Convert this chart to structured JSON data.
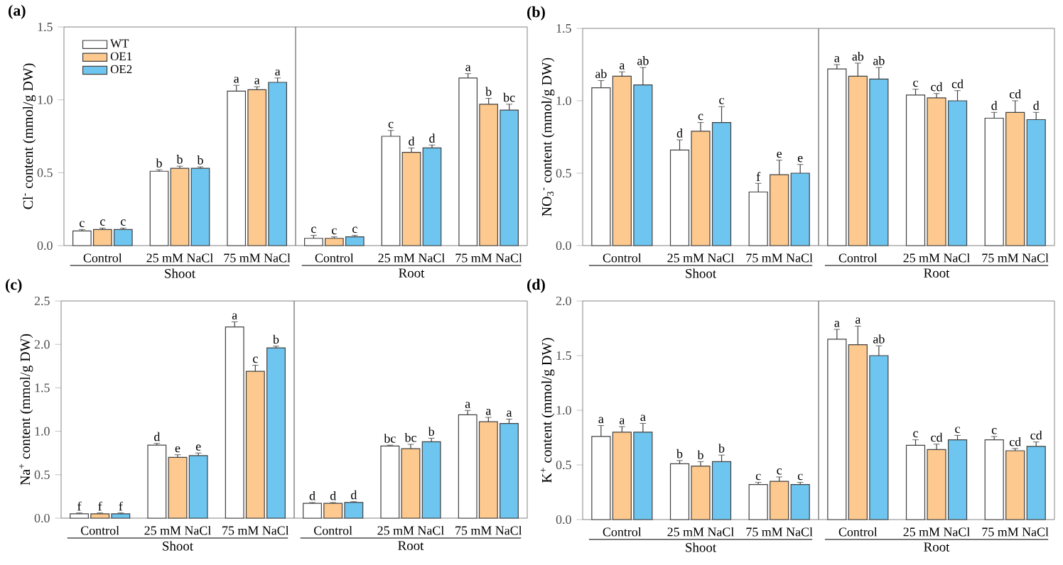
{
  "chart_data": [
    {
      "type": "bar",
      "title": "(a)",
      "ylabel": "Cl$^{-}$ content (mmol/g DW)",
      "categories": [
        "Control",
        "25 mM NaCl",
        "75 mM NaCl",
        "Control",
        "25 mM NaCl",
        "75 mM NaCl"
      ],
      "legend": "top left",
      "series": [
        {
          "name": "WT",
          "color": "#ffffff",
          "values": [
            0.1,
            0.51,
            1.06,
            0.05,
            0.75,
            1.15
          ],
          "errors": [
            0.01,
            0.01,
            0.04,
            0.02,
            0.04,
            0.03
          ],
          "value_labels": [
            "c",
            "b",
            "a",
            "c",
            "c",
            "a"
          ]
        },
        {
          "name": "OE1",
          "color": "#fdc98f",
          "values": [
            0.11,
            0.53,
            1.07,
            0.05,
            0.64,
            0.97
          ],
          "errors": [
            0.01,
            0.015,
            0.02,
            0.01,
            0.03,
            0.04
          ],
          "value_labels": [
            "c",
            "b",
            "a",
            "c",
            "d",
            "b"
          ]
        },
        {
          "name": "OE2",
          "color": "#6ec6f0",
          "values": [
            0.11,
            0.53,
            1.12,
            0.06,
            0.67,
            0.93
          ],
          "errors": [
            0.01,
            0.01,
            0.03,
            0.01,
            0.02,
            0.04
          ],
          "value_labels": [
            "c",
            "b",
            "a",
            "c",
            "d",
            "bc"
          ]
        }
      ],
      "ylim": [
        0,
        1.5
      ],
      "yticks": [
        {
          "value": 0,
          "label": "0.0"
        },
        0.5,
        {
          "value": 1,
          "label": "1.0"
        },
        1.5
      ],
      "annotations": [
        "Shoot",
        "Root"
      ]
    },
    {
      "type": "bar",
      "title": "(b)",
      "ylabel": "NO$_{3}$$^{-}$ content (mmol/g DW)",
      "categories": [
        "Control",
        "25 mM NaCl",
        "75 mM NaCl",
        "Control",
        "25 mM NaCl",
        "75 mM NaCl"
      ],
      "series": [
        {
          "color": "#ffffff",
          "values": [
            1.09,
            0.66,
            0.37,
            1.22,
            1.04,
            0.88
          ],
          "errors": [
            0.05,
            0.07,
            0.06,
            0.03,
            0.04,
            0.04
          ],
          "value_labels": [
            "ab",
            "d",
            "f",
            "a",
            "c",
            "d"
          ]
        },
        {
          "color": "#fdc98f",
          "values": [
            1.17,
            0.79,
            0.49,
            1.17,
            1.02,
            0.92
          ],
          "errors": [
            0.03,
            0.06,
            0.1,
            0.09,
            0.03,
            0.08
          ],
          "value_labels": [
            "a",
            "c",
            "e",
            "ab",
            "cd",
            "cd"
          ]
        },
        {
          "color": "#6ec6f0",
          "values": [
            1.11,
            0.85,
            0.5,
            1.15,
            1.0,
            0.87
          ],
          "errors": [
            0.12,
            0.11,
            0.06,
            0.08,
            0.07,
            0.05
          ],
          "value_labels": [
            "ab",
            "c",
            "e",
            "ab",
            "cd",
            "d"
          ]
        }
      ],
      "ylim": [
        0,
        1.5
      ],
      "yticks": [
        {
          "value": 0,
          "label": "0.0"
        },
        0.5,
        {
          "value": 1,
          "label": "1.0"
        },
        1.5
      ],
      "annotations": [
        "Shoot",
        "Root"
      ]
    },
    {
      "type": "bar",
      "title": "(c)",
      "ylabel": "Na$^{+}$ content (mmol/g DW)",
      "categories": [
        "Control",
        "25 mM NaCl",
        "75 mM NaCl",
        "Control",
        "25 mM NaCl",
        "75 mM NaCl"
      ],
      "series": [
        {
          "color": "#ffffff",
          "values": [
            0.05,
            0.84,
            2.2,
            0.17,
            0.83,
            1.19
          ],
          "errors": [
            0.01,
            0.02,
            0.06,
            0.01,
            0.01,
            0.05
          ],
          "value_labels": [
            "f",
            "d",
            "a",
            "d",
            "bc",
            "a"
          ]
        },
        {
          "color": "#fdc98f",
          "values": [
            0.05,
            0.7,
            1.69,
            0.17,
            0.8,
            1.11
          ],
          "errors": [
            0.01,
            0.03,
            0.07,
            0.01,
            0.05,
            0.05
          ],
          "value_labels": [
            "f",
            "e",
            "c",
            "d",
            "bc",
            "a"
          ]
        },
        {
          "color": "#6ec6f0",
          "values": [
            0.05,
            0.72,
            1.96,
            0.18,
            0.88,
            1.09
          ],
          "errors": [
            0.01,
            0.03,
            0.02,
            0.01,
            0.04,
            0.05
          ],
          "value_labels": [
            "f",
            "e",
            "b",
            "d",
            "b",
            "a"
          ]
        }
      ],
      "ylim": [
        0,
        2.5
      ],
      "yticks": [
        {
          "value": 0,
          "label": "0.0"
        },
        0.5,
        {
          "value": 1,
          "label": "1.0"
        },
        1.5,
        {
          "value": 2,
          "label": "2.0"
        },
        2.5
      ],
      "annotations": [
        "Shoot",
        "Root"
      ]
    },
    {
      "type": "bar",
      "title": "(d)",
      "ylabel": "K$^{+}$ content (mmol/g DW)",
      "categories": [
        "Control",
        "25 mM NaCl",
        "75 mM NaCl",
        "Control",
        "25 mM NaCl",
        "75 mM NaCl"
      ],
      "series": [
        {
          "color": "#ffffff",
          "values": [
            0.76,
            0.51,
            0.32,
            1.65,
            0.68,
            0.73
          ],
          "errors": [
            0.1,
            0.03,
            0.02,
            0.09,
            0.05,
            0.03
          ],
          "value_labels": [
            "a",
            "b",
            "c",
            "a",
            "c",
            "c"
          ]
        },
        {
          "color": "#fdc98f",
          "values": [
            0.8,
            0.49,
            0.35,
            1.6,
            0.64,
            0.63
          ],
          "errors": [
            0.05,
            0.04,
            0.04,
            0.17,
            0.05,
            0.02
          ],
          "value_labels": [
            "a",
            "b",
            "c",
            "a",
            "cd",
            "cd"
          ]
        },
        {
          "color": "#6ec6f0",
          "values": [
            0.8,
            0.53,
            0.32,
            1.5,
            0.73,
            0.67
          ],
          "errors": [
            0.08,
            0.06,
            0.02,
            0.09,
            0.04,
            0.04
          ],
          "value_labels": [
            "a",
            "b",
            "c",
            "ab",
            "c",
            "cd"
          ]
        }
      ],
      "ylim": [
        0,
        2.0
      ],
      "yticks": [
        {
          "value": 0,
          "label": "0.0"
        },
        0.5,
        {
          "value": 1,
          "label": "1.0"
        },
        1.5,
        {
          "value": 2,
          "label": "2.0"
        }
      ],
      "annotations": [
        "Shoot",
        "Root"
      ]
    }
  ]
}
